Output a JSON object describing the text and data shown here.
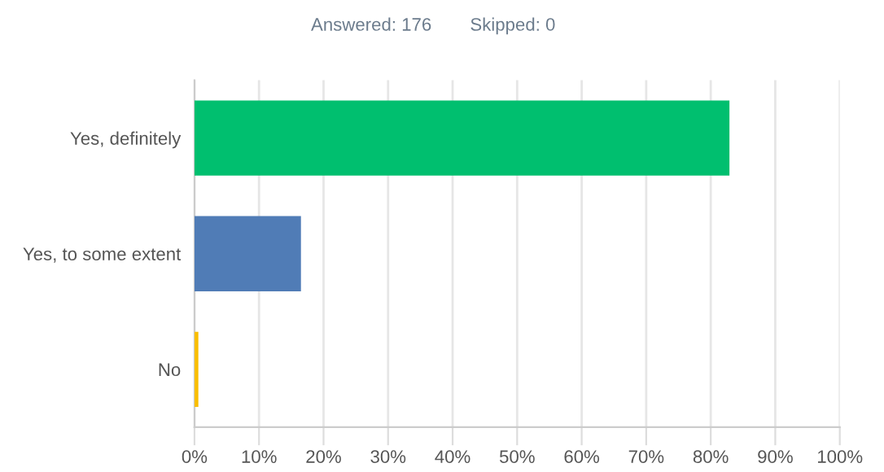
{
  "chart_data": {
    "type": "bar",
    "orientation": "horizontal",
    "categories": [
      "Yes, definitely",
      "Yes, to some extent",
      "No"
    ],
    "values": [
      82.9,
      16.5,
      0.6
    ],
    "colors": [
      "#00bf6f",
      "#507cb6",
      "#f9be00"
    ],
    "xlim": [
      0,
      100
    ],
    "xticks": [
      {
        "value": 0,
        "label": "0%"
      },
      {
        "value": 10,
        "label": "10%"
      },
      {
        "value": 20,
        "label": "20%"
      },
      {
        "value": 30,
        "label": "30%"
      },
      {
        "value": 40,
        "label": "40%"
      },
      {
        "value": 50,
        "label": "50%"
      },
      {
        "value": 60,
        "label": "60%"
      },
      {
        "value": 70,
        "label": "70%"
      },
      {
        "value": 80,
        "label": "80%"
      },
      {
        "value": 90,
        "label": "90%"
      },
      {
        "value": 100,
        "label": "100%"
      }
    ],
    "grid": "x",
    "annotations": [
      "Answered: 176",
      "Skipped: 0"
    ]
  }
}
